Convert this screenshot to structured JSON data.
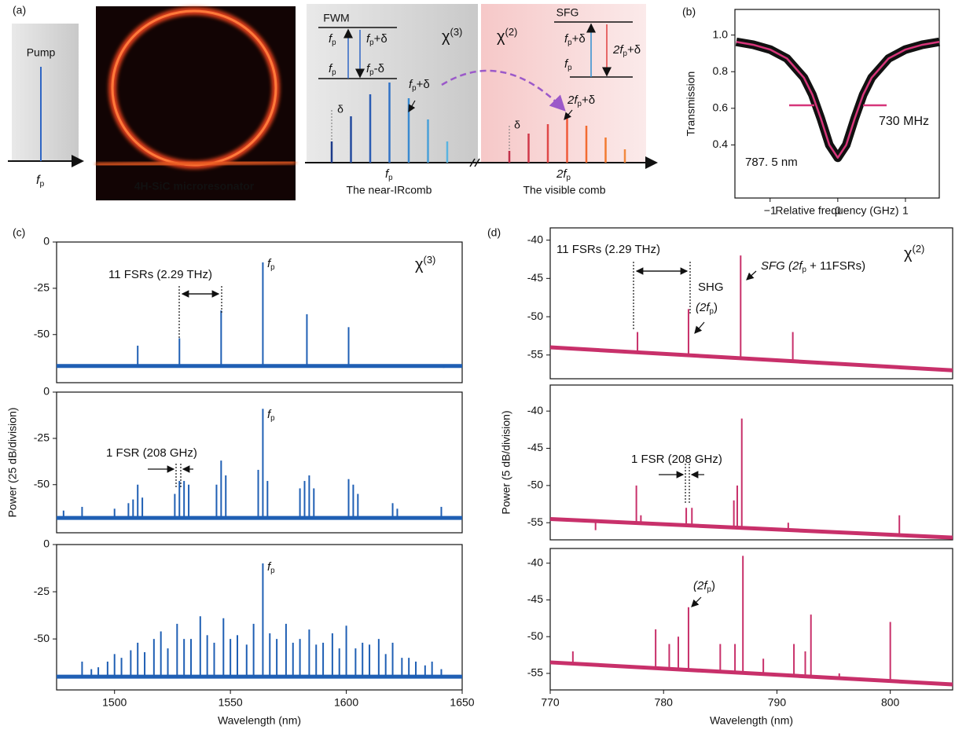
{
  "panel_labels": [
    "(a)",
    "(b)",
    "(c)",
    "(d)"
  ],
  "diagram": {
    "pump": "Pump",
    "pump_freq": [
      "f",
      "p"
    ],
    "image_caption": "4H-SiC microresonator",
    "fwm": "FWM",
    "sfg": "SFG",
    "chi3": [
      "χ",
      "(3)"
    ],
    "chi2": [
      "χ",
      "(2)"
    ],
    "fwm_levels": [
      [
        "f",
        "p"
      ],
      [
        "f",
        "p",
        "+δ"
      ],
      [
        "f",
        "p"
      ],
      [
        "f",
        "p",
        "-δ"
      ]
    ],
    "sfg_levels": [
      [
        "f",
        "p",
        "+δ"
      ],
      [
        "f",
        "p"
      ],
      [
        "2f",
        "p",
        "+δ"
      ]
    ],
    "nir_delta": "δ",
    "nir_label": [
      "f",
      "p",
      "+δ"
    ],
    "vis_delta": "δ",
    "vis_label": [
      "2f",
      "p",
      "+δ"
    ],
    "nir_axis": [
      "f",
      "p"
    ],
    "vis_axis": [
      "2f",
      "p"
    ],
    "nir_caption": "The near-IRcomb",
    "vis_caption": "The visible comb"
  },
  "chart_data": [
    {
      "type": "line",
      "xlabel": "Relative frequency (GHz)",
      "ylabel": "Transmission",
      "x": [
        -1.5,
        -1.25,
        -1,
        -0.75,
        -0.5,
        -0.375,
        -0.25,
        -0.125,
        0,
        0.125,
        0.25,
        0.375,
        0.5,
        0.75,
        1,
        1.25,
        1.5
      ],
      "series": [
        {
          "color": "#111111",
          "values": [
            0.963,
            0.947,
            0.921,
            0.872,
            0.767,
            0.674,
            0.544,
            0.4,
            0.33,
            0.4,
            0.544,
            0.674,
            0.767,
            0.872,
            0.921,
            0.947,
            0.963
          ]
        },
        {
          "color": "#d6357a",
          "values": [
            0.963,
            0.947,
            0.921,
            0.872,
            0.767,
            0.674,
            0.544,
            0.4,
            0.33,
            0.4,
            0.544,
            0.674,
            0.767,
            0.872,
            0.921,
            0.947,
            0.963
          ]
        }
      ],
      "xlim": [
        -1.52,
        1.5
      ],
      "ylim": [
        0.11,
        1.14
      ],
      "xticks": [
        {
          "value": -1,
          "label": "−1"
        },
        0,
        1
      ],
      "yticks": [
        0.4,
        0.6,
        0.8,
        {
          "value": 1,
          "label": "1.0"
        }
      ],
      "annotations": [
        [
          "730 MHz"
        ],
        [
          "787. 5 nm"
        ]
      ]
    },
    {
      "type": "spectrum",
      "color": "#1f5fb4",
      "xlim": [
        1475,
        1650
      ],
      "ylim": [
        -76,
        0
      ],
      "yticks": [
        0,
        -25,
        -50
      ],
      "x": [
        1510,
        1528,
        1546,
        1564,
        1583,
        1601,
        1642
      ],
      "values": [
        -56,
        -52,
        -37,
        -11,
        -39,
        -46,
        -68
      ],
      "floor": {
        "x": [
          1475,
          1650
        ],
        "values": [
          -67,
          -67
        ]
      },
      "annotations": [
        [
          "11 FSRs (2.29 THz)"
        ],
        [
          "f",
          "p"
        ],
        [
          "χ",
          "(3)"
        ]
      ]
    },
    {
      "type": "spectrum",
      "color": "#1f5fb4",
      "xlim": [
        1475,
        1650
      ],
      "ylim": [
        -76,
        0
      ],
      "yticks": [
        0,
        -25,
        -50
      ],
      "ylabel": "Power  (25 dB/division)",
      "x": [
        1478,
        1486,
        1500,
        1506,
        1508,
        1510,
        1512,
        1526,
        1528,
        1530,
        1532,
        1544,
        1546,
        1548,
        1562,
        1564,
        1566,
        1580,
        1582,
        1584,
        1586,
        1601,
        1603,
        1605,
        1620,
        1622,
        1641
      ],
      "values": [
        -64,
        -62,
        -63,
        -60,
        -58,
        -50,
        -57,
        -55,
        -48,
        -48,
        -50,
        -50,
        -37,
        -45,
        -42,
        -9,
        -48,
        -52,
        -48,
        -45,
        -52,
        -47,
        -50,
        -55,
        -60,
        -63,
        -62
      ],
      "floor": {
        "x": [
          1475,
          1650
        ],
        "values": [
          -68,
          -68
        ]
      },
      "annotations": [
        [
          "1 FSR (208 GHz)"
        ],
        [
          "f",
          "p"
        ]
      ]
    },
    {
      "type": "spectrum",
      "color": "#1f5fb4",
      "xlim": [
        1475,
        1650
      ],
      "ylim": [
        -77,
        0
      ],
      "yticks": [
        0,
        -25,
        -50
      ],
      "xticks": [
        1500,
        1550,
        1600,
        1650
      ],
      "xlabel": "Wavelength (nm)",
      "x": [
        1486,
        1490,
        1493,
        1497,
        1500,
        1503,
        1507,
        1510,
        1513,
        1517,
        1520,
        1523,
        1527,
        1530,
        1533,
        1537,
        1540,
        1543,
        1547,
        1550,
        1553,
        1557,
        1560,
        1564,
        1567,
        1570,
        1574,
        1577,
        1580,
        1584,
        1587,
        1590,
        1594,
        1597,
        1600,
        1604,
        1607,
        1610,
        1614,
        1617,
        1620,
        1624,
        1627,
        1630,
        1634,
        1637,
        1641
      ],
      "values": [
        -62,
        -66,
        -65,
        -62,
        -58,
        -60,
        -56,
        -52,
        -57,
        -50,
        -46,
        -55,
        -42,
        -50,
        -50,
        -38,
        -48,
        -52,
        -39,
        -50,
        -48,
        -53,
        -42,
        -10,
        -47,
        -50,
        -42,
        -52,
        -50,
        -45,
        -53,
        -52,
        -47,
        -55,
        -43,
        -55,
        -52,
        -53,
        -50,
        -58,
        -52,
        -60,
        -60,
        -62,
        -64,
        -62,
        -66
      ],
      "floor": {
        "x": [
          1475,
          1650
        ],
        "values": [
          -70,
          -70
        ]
      },
      "annotations": [
        [
          "f",
          "p"
        ]
      ]
    },
    {
      "type": "spectrum",
      "color": "#c8306a",
      "xlim": [
        770,
        805.5
      ],
      "ylim": [
        -58.1,
        -38.4
      ],
      "yticks": [
        -40,
        -45,
        -50,
        -55
      ],
      "x": [
        777.7,
        782.2,
        786.8,
        791.4
      ],
      "values": [
        -52,
        -49,
        -42,
        -52
      ],
      "floor": {
        "x": [
          770,
          805.5
        ],
        "values": [
          -54,
          -57
        ]
      },
      "annotations": [
        [
          "11 FSRs (2.29 THz)"
        ],
        [
          "SHG"
        ],
        [
          "(2f",
          "p",
          ")"
        ],
        [
          "SFG (2f",
          "p",
          " + 11FSRs)"
        ],
        [
          "χ",
          "(2)"
        ]
      ]
    },
    {
      "type": "spectrum",
      "color": "#c8306a",
      "xlim": [
        770,
        805.5
      ],
      "ylim": [
        -57.3,
        -36.5
      ],
      "yticks": [
        -40,
        -45,
        -50,
        -55
      ],
      "ylabel": "Power  (5 dB/division)",
      "x": [
        774,
        777.6,
        778,
        782,
        782.5,
        786.2,
        786.5,
        786.9,
        790.5,
        791,
        800.8
      ],
      "values": [
        -56,
        -50,
        -54,
        -53,
        -53,
        -52,
        -50,
        -41,
        -56,
        -55,
        -54
      ],
      "floor": {
        "x": [
          770,
          805.5
        ],
        "values": [
          -54.5,
          -57
        ]
      },
      "annotations": [
        [
          "1 FSR (208 GHz)"
        ]
      ]
    },
    {
      "type": "spectrum",
      "color": "#c8306a",
      "xlim": [
        770,
        805.5
      ],
      "ylim": [
        -57.25,
        -38
      ],
      "yticks": [
        -40,
        -45,
        -50,
        -55
      ],
      "xticks": [
        770,
        780,
        790,
        800
      ],
      "xlabel": "Wavelength (nm)",
      "x": [
        772,
        775.5,
        779.3,
        780.5,
        781.3,
        782.2,
        785,
        786.3,
        787,
        788.8,
        791.5,
        792.5,
        793,
        795.5,
        800
      ],
      "values": [
        -52,
        -54,
        -49,
        -51,
        -50,
        -46,
        -51,
        -51,
        -39,
        -53,
        -51,
        -52,
        -47,
        -55,
        -48
      ],
      "floor": {
        "x": [
          770,
          805.5
        ],
        "values": [
          -53.5,
          -56.5
        ]
      },
      "annotations": [
        [
          "(2f",
          "p",
          ")"
        ]
      ]
    }
  ]
}
